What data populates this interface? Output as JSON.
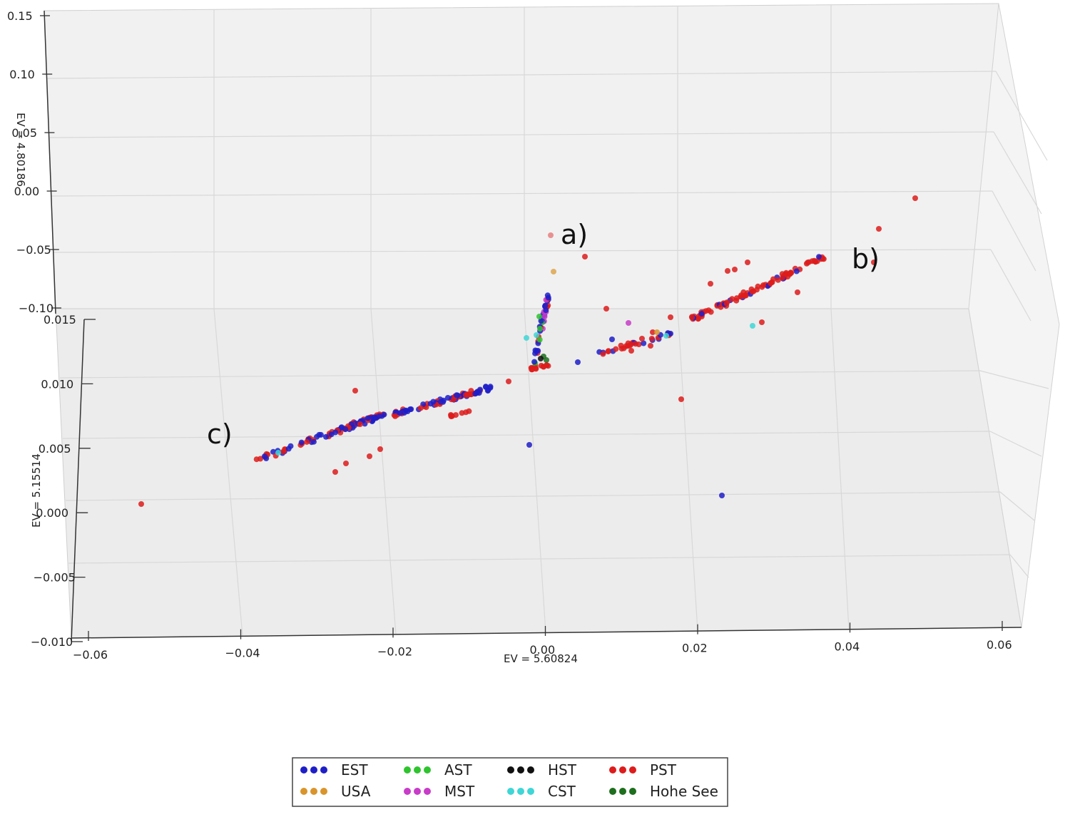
{
  "chart_data": {
    "type": "scatter",
    "subtype": "3d-scatter",
    "title": "",
    "axes": {
      "x": {
        "label": "EV = 5.60824",
        "ticks": [
          "−0.06",
          "−0.04",
          "−0.02",
          "0.00",
          "0.02",
          "0.04",
          "0.06"
        ],
        "range": [
          -0.06,
          0.06
        ]
      },
      "y": {
        "label": "EV = 5.15514",
        "ticks": [
          "−0.010",
          "−0.005",
          "0.000",
          "0.005",
          "0.010",
          "0.015"
        ],
        "range": [
          -0.01,
          0.015
        ]
      },
      "z": {
        "label": "EV = 4.80186",
        "ticks": [
          "−0.10",
          "−0.05",
          "0.00",
          "0.05",
          "0.10",
          "0.15"
        ],
        "range": [
          -0.1,
          0.15
        ]
      }
    },
    "grid": true,
    "legend_position": "bottom-center",
    "annotations": [
      "a)",
      "b)",
      "c)"
    ],
    "series": [
      {
        "name": "EST",
        "color": "#1f1fc8",
        "approx_count": 160
      },
      {
        "name": "USA",
        "color": "#d9952b",
        "approx_count": 3
      },
      {
        "name": "AST",
        "color": "#2ec42e",
        "approx_count": 4
      },
      {
        "name": "MST",
        "color": "#c83cc8",
        "approx_count": 4
      },
      {
        "name": "HST",
        "color": "#111111",
        "approx_count": 1
      },
      {
        "name": "CST",
        "color": "#3fd6d6",
        "approx_count": 6
      },
      {
        "name": "PST",
        "color": "#dd1c1c",
        "approx_count": 230
      },
      {
        "name": "Hohe See",
        "color": "#1d6e1d",
        "approx_count": 3
      }
    ]
  }
}
